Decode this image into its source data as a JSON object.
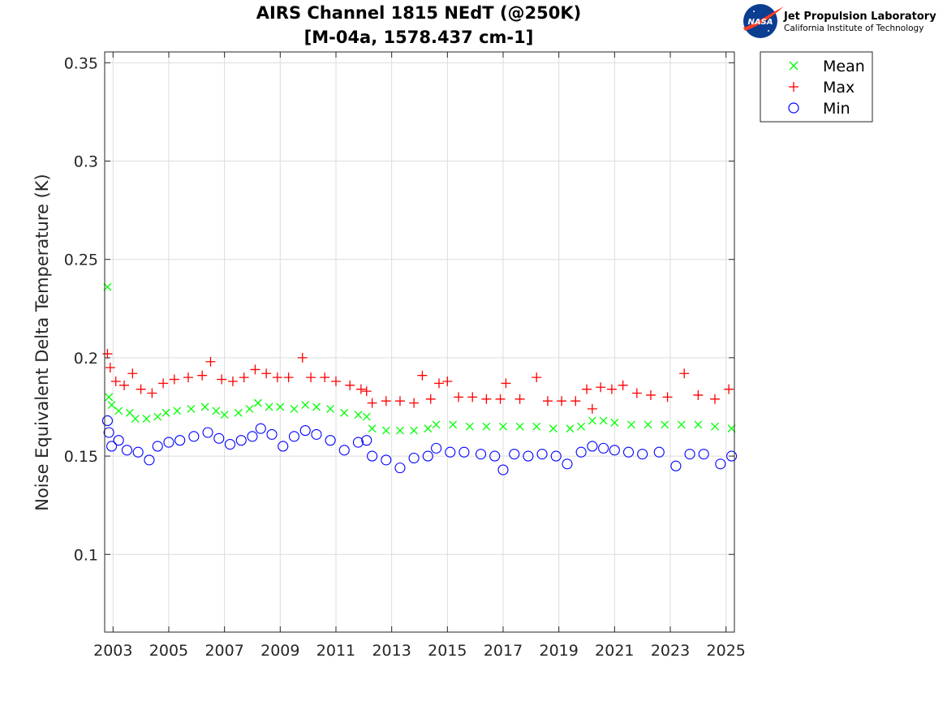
{
  "chart_data": {
    "type": "scatter",
    "title": "AIRS Channel 1815 NEdT (@250K)",
    "subtitle": "[M-04a, 1578.437 cm-1]",
    "xlabel": "",
    "ylabel": "Noise Equivalent Delta Temperature (K)",
    "xlim": [
      2002.7,
      2025.3
    ],
    "ylim": [
      0.0605,
      0.3555
    ],
    "x_ticks": [
      "2003",
      "2005",
      "2007",
      "2009",
      "2011",
      "2013",
      "2015",
      "2017",
      "2019",
      "2021",
      "2023",
      "2025"
    ],
    "y_ticks": [
      "0.1",
      "0.15",
      "0.2",
      "0.25",
      "0.3",
      "0.35"
    ],
    "grid": true,
    "legend_position": "outside top-right",
    "series": [
      {
        "name": "Mean",
        "marker": "x",
        "color": "#00ff00",
        "points": [
          [
            2002.8,
            0.236
          ],
          [
            2002.85,
            0.18
          ],
          [
            2002.95,
            0.176
          ],
          [
            2003.2,
            0.173
          ],
          [
            2003.6,
            0.172
          ],
          [
            2003.8,
            0.169
          ],
          [
            2004.2,
            0.169
          ],
          [
            2004.6,
            0.17
          ],
          [
            2004.9,
            0.172
          ],
          [
            2005.3,
            0.173
          ],
          [
            2005.8,
            0.174
          ],
          [
            2006.3,
            0.175
          ],
          [
            2006.7,
            0.173
          ],
          [
            2007.0,
            0.171
          ],
          [
            2007.5,
            0.172
          ],
          [
            2007.9,
            0.174
          ],
          [
            2008.2,
            0.177
          ],
          [
            2008.6,
            0.175
          ],
          [
            2009.0,
            0.175
          ],
          [
            2009.5,
            0.174
          ],
          [
            2009.9,
            0.176
          ],
          [
            2010.3,
            0.175
          ],
          [
            2010.8,
            0.174
          ],
          [
            2011.3,
            0.172
          ],
          [
            2011.8,
            0.171
          ],
          [
            2012.1,
            0.17
          ],
          [
            2012.3,
            0.164
          ],
          [
            2012.8,
            0.163
          ],
          [
            2013.3,
            0.163
          ],
          [
            2013.8,
            0.163
          ],
          [
            2014.3,
            0.164
          ],
          [
            2014.6,
            0.166
          ],
          [
            2015.2,
            0.166
          ],
          [
            2015.8,
            0.165
          ],
          [
            2016.4,
            0.165
          ],
          [
            2017.0,
            0.165
          ],
          [
            2017.6,
            0.165
          ],
          [
            2018.2,
            0.165
          ],
          [
            2018.8,
            0.164
          ],
          [
            2019.4,
            0.164
          ],
          [
            2019.8,
            0.165
          ],
          [
            2020.2,
            0.168
          ],
          [
            2020.6,
            0.168
          ],
          [
            2021.0,
            0.167
          ],
          [
            2021.6,
            0.166
          ],
          [
            2022.2,
            0.166
          ],
          [
            2022.8,
            0.166
          ],
          [
            2023.4,
            0.166
          ],
          [
            2024.0,
            0.166
          ],
          [
            2024.6,
            0.165
          ],
          [
            2025.2,
            0.164
          ]
        ]
      },
      {
        "name": "Max",
        "marker": "+",
        "color": "#ff0000",
        "points": [
          [
            2002.8,
            0.202
          ],
          [
            2002.9,
            0.195
          ],
          [
            2003.1,
            0.188
          ],
          [
            2003.4,
            0.186
          ],
          [
            2003.7,
            0.192
          ],
          [
            2004.0,
            0.184
          ],
          [
            2004.4,
            0.182
          ],
          [
            2004.8,
            0.187
          ],
          [
            2005.2,
            0.189
          ],
          [
            2005.7,
            0.19
          ],
          [
            2006.2,
            0.191
          ],
          [
            2006.5,
            0.198
          ],
          [
            2006.9,
            0.189
          ],
          [
            2007.3,
            0.188
          ],
          [
            2007.7,
            0.19
          ],
          [
            2008.1,
            0.194
          ],
          [
            2008.5,
            0.192
          ],
          [
            2008.9,
            0.19
          ],
          [
            2009.3,
            0.19
          ],
          [
            2009.8,
            0.2
          ],
          [
            2010.1,
            0.19
          ],
          [
            2010.6,
            0.19
          ],
          [
            2011.0,
            0.188
          ],
          [
            2011.5,
            0.186
          ],
          [
            2011.9,
            0.184
          ],
          [
            2012.1,
            0.183
          ],
          [
            2012.3,
            0.177
          ],
          [
            2012.8,
            0.178
          ],
          [
            2013.3,
            0.178
          ],
          [
            2013.8,
            0.177
          ],
          [
            2014.1,
            0.191
          ],
          [
            2014.4,
            0.179
          ],
          [
            2014.7,
            0.187
          ],
          [
            2015.0,
            0.188
          ],
          [
            2015.4,
            0.18
          ],
          [
            2015.9,
            0.18
          ],
          [
            2016.4,
            0.179
          ],
          [
            2016.9,
            0.179
          ],
          [
            2017.1,
            0.187
          ],
          [
            2017.6,
            0.179
          ],
          [
            2018.2,
            0.19
          ],
          [
            2018.6,
            0.178
          ],
          [
            2019.1,
            0.178
          ],
          [
            2019.6,
            0.178
          ],
          [
            2020.0,
            0.184
          ],
          [
            2020.2,
            0.174
          ],
          [
            2020.5,
            0.185
          ],
          [
            2020.9,
            0.184
          ],
          [
            2021.3,
            0.186
          ],
          [
            2021.8,
            0.182
          ],
          [
            2022.3,
            0.181
          ],
          [
            2022.9,
            0.18
          ],
          [
            2023.5,
            0.192
          ],
          [
            2024.0,
            0.181
          ],
          [
            2024.6,
            0.179
          ],
          [
            2025.1,
            0.184
          ]
        ]
      },
      {
        "name": "Min",
        "marker": "o",
        "color": "#0000ff",
        "points": [
          [
            2002.8,
            0.168
          ],
          [
            2002.85,
            0.162
          ],
          [
            2002.95,
            0.155
          ],
          [
            2003.2,
            0.158
          ],
          [
            2003.5,
            0.153
          ],
          [
            2003.9,
            0.152
          ],
          [
            2004.3,
            0.148
          ],
          [
            2004.6,
            0.155
          ],
          [
            2005.0,
            0.157
          ],
          [
            2005.4,
            0.158
          ],
          [
            2005.9,
            0.16
          ],
          [
            2006.4,
            0.162
          ],
          [
            2006.8,
            0.159
          ],
          [
            2007.2,
            0.156
          ],
          [
            2007.6,
            0.158
          ],
          [
            2008.0,
            0.16
          ],
          [
            2008.3,
            0.164
          ],
          [
            2008.7,
            0.161
          ],
          [
            2009.1,
            0.155
          ],
          [
            2009.5,
            0.16
          ],
          [
            2009.9,
            0.163
          ],
          [
            2010.3,
            0.161
          ],
          [
            2010.8,
            0.158
          ],
          [
            2011.3,
            0.153
          ],
          [
            2011.8,
            0.157
          ],
          [
            2012.1,
            0.158
          ],
          [
            2012.3,
            0.15
          ],
          [
            2012.8,
            0.148
          ],
          [
            2013.3,
            0.144
          ],
          [
            2013.8,
            0.149
          ],
          [
            2014.3,
            0.15
          ],
          [
            2014.6,
            0.154
          ],
          [
            2015.1,
            0.152
          ],
          [
            2015.6,
            0.152
          ],
          [
            2016.2,
            0.151
          ],
          [
            2016.7,
            0.15
          ],
          [
            2017.0,
            0.143
          ],
          [
            2017.4,
            0.151
          ],
          [
            2017.9,
            0.15
          ],
          [
            2018.4,
            0.151
          ],
          [
            2018.9,
            0.15
          ],
          [
            2019.3,
            0.146
          ],
          [
            2019.8,
            0.152
          ],
          [
            2020.2,
            0.155
          ],
          [
            2020.6,
            0.154
          ],
          [
            2021.0,
            0.153
          ],
          [
            2021.5,
            0.152
          ],
          [
            2022.0,
            0.151
          ],
          [
            2022.6,
            0.152
          ],
          [
            2023.2,
            0.145
          ],
          [
            2023.7,
            0.151
          ],
          [
            2024.2,
            0.151
          ],
          [
            2024.8,
            0.146
          ],
          [
            2025.2,
            0.15
          ]
        ]
      }
    ]
  },
  "logo": {
    "agency": "NASA",
    "lab_name": "Jet Propulsion Laboratory",
    "institution": "California Institute of Technology"
  }
}
